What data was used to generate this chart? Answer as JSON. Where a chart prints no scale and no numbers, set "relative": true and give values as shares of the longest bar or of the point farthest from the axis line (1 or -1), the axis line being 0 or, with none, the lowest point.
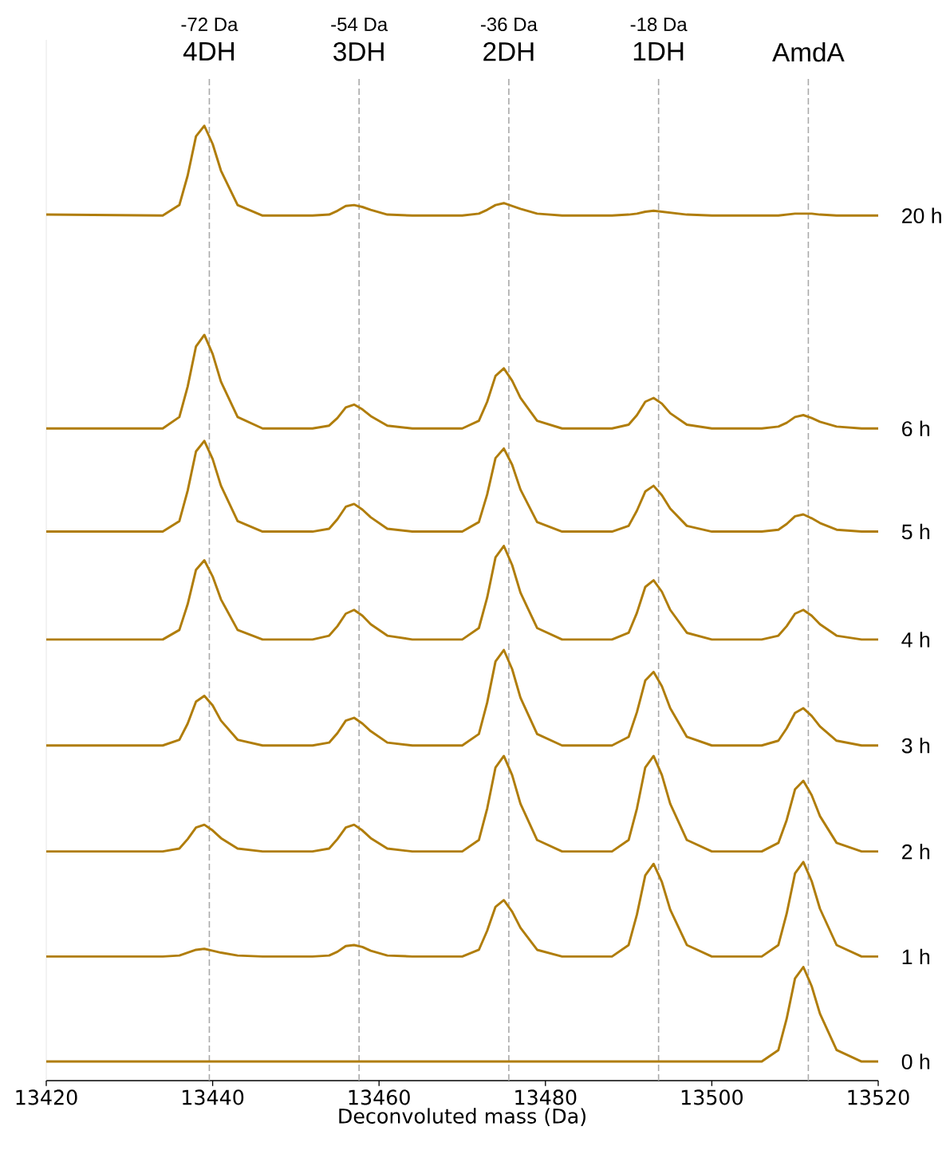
{
  "chart_data": {
    "type": "line",
    "relative": true,
    "xlabel": "Deconvoluted mass (Da)",
    "xlim": [
      13420,
      13520
    ],
    "xticks": [
      13420,
      13440,
      13460,
      13480,
      13500,
      13520
    ],
    "marker": "none",
    "line_style": "solid",
    "x": [
      13420,
      13434,
      13436,
      13437,
      13438,
      13439,
      13440,
      13441,
      13443,
      13446,
      13452,
      13454,
      13455,
      13456,
      13457,
      13458,
      13459,
      13461,
      13464,
      13470,
      13472,
      13473,
      13474,
      13475,
      13476,
      13477,
      13479,
      13482,
      13488,
      13490,
      13491,
      13492,
      13493,
      13494,
      13495,
      13497,
      13500,
      13506,
      13508,
      13509,
      13510,
      13511,
      13512,
      13513,
      13515,
      13518,
      13520
    ],
    "series": [
      {
        "name": "20 h",
        "color": "#b07d0a",
        "values": [
          0.907,
          0.906,
          0.917,
          0.948,
          0.989,
          1.0,
          0.981,
          0.953,
          0.917,
          0.906,
          0.906,
          0.907,
          0.911,
          0.916,
          0.917,
          0.915,
          0.912,
          0.907,
          0.906,
          0.906,
          0.908,
          0.912,
          0.917,
          0.919,
          0.916,
          0.913,
          0.908,
          0.906,
          0.906,
          0.907,
          0.908,
          0.91,
          0.911,
          0.91,
          0.909,
          0.907,
          0.906,
          0.906,
          0.906,
          0.907,
          0.908,
          0.908,
          0.908,
          0.907,
          0.906,
          0.906,
          0.906
        ]
      },
      {
        "name": "6 h",
        "color": "#b07d0a",
        "values": [
          0.683,
          0.683,
          0.695,
          0.727,
          0.769,
          0.781,
          0.761,
          0.732,
          0.695,
          0.683,
          0.683,
          0.686,
          0.694,
          0.705,
          0.708,
          0.703,
          0.696,
          0.686,
          0.683,
          0.683,
          0.691,
          0.711,
          0.738,
          0.746,
          0.733,
          0.715,
          0.691,
          0.683,
          0.683,
          0.687,
          0.697,
          0.711,
          0.715,
          0.709,
          0.699,
          0.687,
          0.683,
          0.683,
          0.685,
          0.689,
          0.695,
          0.697,
          0.694,
          0.69,
          0.685,
          0.683,
          0.683
        ]
      },
      {
        "name": "5 h",
        "color": "#b07d0a",
        "values": [
          0.575,
          0.575,
          0.586,
          0.618,
          0.659,
          0.67,
          0.651,
          0.623,
          0.586,
          0.575,
          0.575,
          0.578,
          0.588,
          0.601,
          0.604,
          0.598,
          0.59,
          0.578,
          0.575,
          0.575,
          0.585,
          0.614,
          0.652,
          0.662,
          0.645,
          0.619,
          0.585,
          0.575,
          0.575,
          0.581,
          0.597,
          0.617,
          0.623,
          0.613,
          0.599,
          0.581,
          0.575,
          0.575,
          0.577,
          0.583,
          0.591,
          0.593,
          0.589,
          0.584,
          0.577,
          0.575,
          0.575
        ]
      },
      {
        "name": "4 h",
        "color": "#b07d0a",
        "values": [
          0.462,
          0.462,
          0.472,
          0.499,
          0.535,
          0.545,
          0.528,
          0.504,
          0.472,
          0.462,
          0.462,
          0.466,
          0.476,
          0.489,
          0.493,
          0.487,
          0.478,
          0.466,
          0.462,
          0.462,
          0.474,
          0.506,
          0.548,
          0.56,
          0.54,
          0.511,
          0.474,
          0.462,
          0.462,
          0.469,
          0.49,
          0.517,
          0.524,
          0.512,
          0.493,
          0.469,
          0.462,
          0.462,
          0.466,
          0.476,
          0.489,
          0.493,
          0.487,
          0.478,
          0.466,
          0.462,
          0.462
        ]
      },
      {
        "name": "3 h",
        "color": "#b07d0a",
        "values": [
          0.351,
          0.351,
          0.357,
          0.374,
          0.397,
          0.403,
          0.393,
          0.377,
          0.357,
          0.351,
          0.351,
          0.354,
          0.364,
          0.377,
          0.38,
          0.374,
          0.366,
          0.354,
          0.351,
          0.351,
          0.363,
          0.396,
          0.439,
          0.451,
          0.431,
          0.401,
          0.363,
          0.351,
          0.351,
          0.36,
          0.386,
          0.419,
          0.428,
          0.413,
          0.39,
          0.36,
          0.351,
          0.351,
          0.356,
          0.369,
          0.385,
          0.39,
          0.382,
          0.371,
          0.356,
          0.351,
          0.351
        ]
      },
      {
        "name": "2 h",
        "color": "#b07d0a",
        "values": [
          0.24,
          0.24,
          0.243,
          0.253,
          0.265,
          0.268,
          0.262,
          0.254,
          0.243,
          0.24,
          0.24,
          0.243,
          0.253,
          0.265,
          0.268,
          0.262,
          0.254,
          0.243,
          0.24,
          0.24,
          0.252,
          0.285,
          0.328,
          0.34,
          0.32,
          0.29,
          0.252,
          0.24,
          0.24,
          0.252,
          0.285,
          0.328,
          0.34,
          0.32,
          0.29,
          0.252,
          0.24,
          0.24,
          0.249,
          0.273,
          0.305,
          0.314,
          0.299,
          0.277,
          0.249,
          0.24,
          0.24
        ]
      },
      {
        "name": "1 h",
        "color": "#b07d0a",
        "values": [
          0.13,
          0.13,
          0.131,
          0.134,
          0.137,
          0.138,
          0.136,
          0.134,
          0.131,
          0.13,
          0.13,
          0.131,
          0.135,
          0.141,
          0.142,
          0.14,
          0.136,
          0.131,
          0.13,
          0.13,
          0.137,
          0.157,
          0.182,
          0.189,
          0.177,
          0.16,
          0.137,
          0.13,
          0.13,
          0.142,
          0.174,
          0.215,
          0.227,
          0.208,
          0.179,
          0.142,
          0.13,
          0.13,
          0.142,
          0.175,
          0.217,
          0.229,
          0.209,
          0.18,
          0.142,
          0.13,
          0.13
        ]
      },
      {
        "name": "0 h",
        "color": "#b07d0a",
        "values": [
          0.02,
          0.02,
          0.02,
          0.02,
          0.02,
          0.02,
          0.02,
          0.02,
          0.02,
          0.02,
          0.02,
          0.02,
          0.02,
          0.02,
          0.02,
          0.02,
          0.02,
          0.02,
          0.02,
          0.02,
          0.02,
          0.02,
          0.02,
          0.02,
          0.02,
          0.02,
          0.02,
          0.02,
          0.02,
          0.02,
          0.02,
          0.02,
          0.02,
          0.02,
          0.02,
          0.02,
          0.02,
          0.02,
          0.032,
          0.065,
          0.107,
          0.119,
          0.099,
          0.07,
          0.032,
          0.02,
          0.02
        ]
      }
    ],
    "ref_lines": [
      {
        "axis": "x",
        "value": 13439.6,
        "label": "4DH",
        "color": "#aaaaaa",
        "line_style": "dashed"
      },
      {
        "axis": "x",
        "value": 13457.6,
        "label": "3DH",
        "color": "#aaaaaa",
        "line_style": "dashed"
      },
      {
        "axis": "x",
        "value": 13475.6,
        "label": "2DH",
        "color": "#aaaaaa",
        "line_style": "dashed"
      },
      {
        "axis": "x",
        "value": 13493.6,
        "label": "1DH",
        "color": "#aaaaaa",
        "line_style": "dashed"
      },
      {
        "axis": "x",
        "value": 13511.6,
        "label": "AmdA",
        "color": "#aaaaaa",
        "line_style": "dashed"
      }
    ],
    "annotations": [
      "-72 Da",
      "-54 Da",
      "-36 Da",
      "-18 Da"
    ]
  }
}
